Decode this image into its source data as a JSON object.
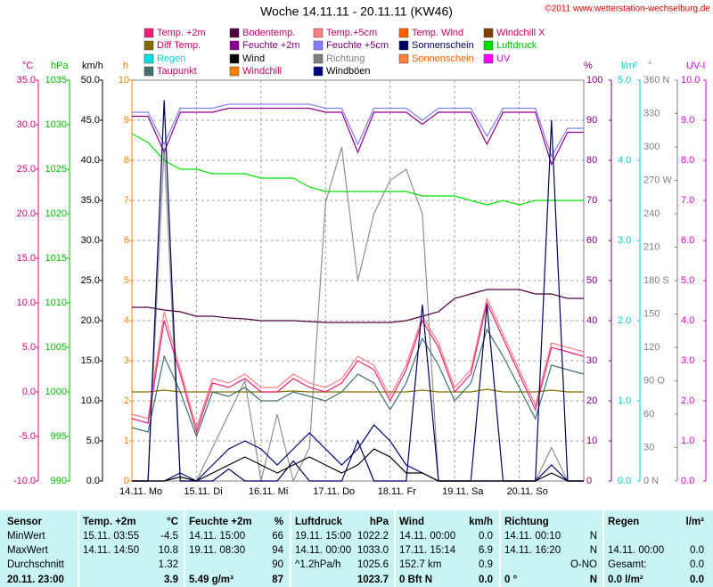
{
  "chart_data": {
    "type": "line",
    "title": "Woche 14.11.11 - 20.11.11 (KW46)",
    "copyright": "©2011 www.wetterstation-wechselburg.de",
    "legend": [
      [
        {
          "name": "Temp. +2m",
          "color": "#f0207a",
          "text": "#d00060"
        },
        {
          "name": "Diff Temp.",
          "color": "#807000",
          "text": "#d00060"
        },
        {
          "name": "Regen",
          "color": "#00e0e0",
          "text": "#00d0d0"
        },
        {
          "name": "Taupunkt",
          "color": "#407070",
          "text": "#d00060"
        }
      ],
      [
        {
          "name": "Bodentemp.",
          "color": "#500040",
          "text": "#d00060"
        },
        {
          "name": "Feuchte +2m",
          "color": "#900090",
          "text": "#800080"
        },
        {
          "name": "Wind",
          "color": "#000000",
          "text": "#000000"
        },
        {
          "name": "Windchill",
          "color": "#ff8000",
          "text": "#d00060"
        }
      ],
      [
        {
          "name": "Temp.+5cm",
          "color": "#ff8080",
          "text": "#d00060"
        },
        {
          "name": "Feuchte +5cm",
          "color": "#8080ff",
          "text": "#800080"
        },
        {
          "name": "Richtung",
          "color": "#808080",
          "text": "#808080"
        },
        {
          "name": "Windböen",
          "color": "#000080",
          "text": "#000000"
        }
      ],
      [
        {
          "name": "Temp. Wind",
          "color": "#ff6000",
          "text": "#d00060"
        },
        {
          "name": "Sonnenschein",
          "color": "#000060",
          "text": "#000060"
        },
        {
          "name": "Sonnenschein",
          "color": "#ff8040",
          "text": "#ff6000"
        }
      ],
      [
        {
          "name": "Windchill X",
          "color": "#804000",
          "text": "#d00060"
        },
        {
          "name": "Luftdruck",
          "color": "#00e000",
          "text": "#00c000"
        },
        {
          "name": "UV",
          "color": "#ff00ff",
          "text": "#e000e0"
        }
      ]
    ],
    "axes": [
      {
        "unit": "°C",
        "color": "#e0007a",
        "lim": [
          -10,
          35
        ],
        "ticks": [
          {
            "value": 35,
            "label": "35.0"
          },
          {
            "value": 30,
            "label": "30.0"
          },
          {
            "value": 25,
            "label": "25.0"
          },
          {
            "value": 20,
            "label": "20.0"
          },
          {
            "value": 15,
            "label": "15.0"
          },
          {
            "value": 10,
            "label": "10.0"
          },
          {
            "value": 5,
            "label": "5.0"
          },
          {
            "value": 0,
            "label": "0.0"
          },
          {
            "value": -5,
            "label": "-5.0"
          },
          {
            "value": -10,
            "label": "-10.0"
          }
        ]
      },
      {
        "unit": "hPa",
        "color": "#00c000",
        "lim": [
          990,
          1035
        ],
        "ticks": [
          1035,
          1030,
          1025,
          1020,
          1015,
          1010,
          1005,
          1000,
          995,
          990
        ]
      },
      {
        "unit": "km/h",
        "color": "#000000",
        "lim": [
          0,
          50
        ],
        "ticks": [
          {
            "value": 50,
            "label": "50.0"
          },
          {
            "value": 45,
            "label": "45.0"
          },
          {
            "value": 40,
            "label": "40.0"
          },
          {
            "value": 35,
            "label": "35.0"
          },
          {
            "value": 30,
            "label": "30.0"
          },
          {
            "value": 25,
            "label": "25.0"
          },
          {
            "value": 20,
            "label": "20.0"
          },
          {
            "value": 15,
            "label": "15.0"
          },
          {
            "value": 10,
            "label": "10.0"
          },
          {
            "value": 5,
            "label": "5.0"
          },
          {
            "value": 0,
            "label": "0.0"
          }
        ]
      },
      {
        "unit": "h",
        "color": "#ff8000",
        "lim": [
          0,
          10
        ],
        "ticks": [
          10,
          9,
          8,
          7,
          6,
          5,
          4,
          3,
          2,
          1,
          0
        ]
      },
      {
        "unit": "%",
        "color": "#800080",
        "lim": [
          0,
          100
        ],
        "ticks": [
          100,
          90,
          80,
          70,
          60,
          50,
          40,
          30,
          20,
          10,
          0
        ]
      },
      {
        "unit": "l/m²",
        "color": "#00d0d0",
        "lim": [
          0,
          5
        ],
        "ticks": [
          {
            "value": 5,
            "label": "5.0"
          },
          {
            "value": 4,
            "label": "4.0"
          },
          {
            "value": 3,
            "label": "3.0"
          },
          {
            "value": 2,
            "label": "2.0"
          },
          {
            "value": 1,
            "label": "1.0"
          },
          {
            "value": 0,
            "label": "0.0"
          }
        ]
      },
      {
        "unit": "°",
        "color": "#808080",
        "lim": [
          0,
          360
        ],
        "ticks": [
          {
            "value": 360,
            "label": "360 N"
          },
          330,
          300,
          {
            "value": 270,
            "label": "270 W"
          },
          240,
          210,
          {
            "value": 180,
            "label": "180 S"
          },
          150,
          120,
          {
            "value": 90,
            "label": "90 O"
          },
          60,
          30,
          {
            "value": 0,
            "label": "0 N"
          }
        ]
      },
      {
        "unit": "UV-I",
        "color": "#e000e0",
        "lim": [
          0,
          10
        ],
        "ticks": [
          {
            "value": 10,
            "label": "10.0"
          },
          {
            "value": 9,
            "label": "9.0"
          },
          {
            "value": 8,
            "label": "8.0"
          },
          {
            "value": 7,
            "label": "7.0"
          },
          {
            "value": 6,
            "label": "6.0"
          },
          {
            "value": 5,
            "label": "5.0"
          },
          {
            "value": 4,
            "label": "4.0"
          },
          {
            "value": 3,
            "label": "3.0"
          },
          {
            "value": 2,
            "label": "2.0"
          },
          {
            "value": 1,
            "label": "1.0"
          },
          {
            "value": 0,
            "label": "0.0"
          }
        ]
      }
    ],
    "grid": true,
    "days": [
      "14.11. Mo",
      "15.11. Di",
      "16.11. Mi",
      "17.11. Do",
      "18.11. Fr",
      "19.11. Sa",
      "20.11. So"
    ],
    "series": [
      {
        "name": "Richtung",
        "color": "#909090",
        "axis": 6,
        "values": [
          0,
          0,
          300,
          0,
          0,
          30,
          60,
          90,
          0,
          60,
          0,
          30,
          250,
          300,
          180,
          240,
          270,
          280,
          240,
          0,
          0,
          0,
          0,
          0,
          0,
          0,
          30,
          0,
          0
        ]
      },
      {
        "name": "Luftdruck",
        "color": "#00e000",
        "axis": 1,
        "values": [
          1029,
          1028,
          1026,
          1025,
          1025,
          1024.5,
          1024.5,
          1024.5,
          1024,
          1024,
          1024,
          1023,
          1022.5,
          1022.5,
          1022.5,
          1022.5,
          1022.5,
          1022.5,
          1022,
          1022,
          1022,
          1021.5,
          1021,
          1021.5,
          1021,
          1021.5,
          1021.5,
          1021.5,
          1021.5
        ]
      },
      {
        "name": "Feuchte +5cm",
        "color": "#8080ff",
        "axis": 4,
        "values": [
          92,
          92,
          84,
          93,
          93,
          93,
          94,
          94,
          94,
          94,
          94,
          94,
          93,
          93,
          84,
          93,
          93,
          93,
          90,
          93,
          93,
          93,
          86,
          93,
          93,
          93,
          81,
          88,
          88
        ]
      },
      {
        "name": "Feuchte +2m",
        "color": "#900090",
        "axis": 4,
        "values": [
          91,
          91,
          82,
          92,
          92,
          92,
          93,
          93,
          93,
          93,
          93,
          93,
          92,
          92,
          82,
          92,
          92,
          92,
          89,
          92,
          92,
          92,
          84,
          92,
          92,
          92,
          79,
          87,
          87
        ]
      },
      {
        "name": "Bodentemp.",
        "color": "#500040",
        "axis": 0,
        "values": [
          9.5,
          9.5,
          9.2,
          9,
          8.5,
          8.5,
          8.3,
          8.2,
          8,
          8,
          8,
          7.9,
          7.8,
          7.8,
          7.8,
          7.8,
          7.8,
          8,
          8.5,
          9,
          10.5,
          11,
          11.5,
          11.5,
          11.5,
          11,
          11,
          10.5,
          10.5
        ]
      },
      {
        "name": "Diff Temp.",
        "color": "#807000",
        "axis": 0,
        "values": [
          0,
          0,
          0.2,
          0,
          0,
          0,
          0,
          0,
          0,
          0,
          0.1,
          0,
          0,
          0,
          0,
          0,
          0,
          0,
          0.2,
          0,
          0,
          0,
          0.3,
          0,
          0,
          0,
          0.2,
          0,
          0
        ]
      },
      {
        "name": "Taupunkt",
        "color": "#407070",
        "axis": 0,
        "values": [
          -4,
          -4.5,
          4,
          0,
          -5,
          0,
          -0.5,
          0.5,
          -1,
          -1,
          0,
          -0.5,
          -1,
          0,
          2,
          1,
          -2,
          1,
          6,
          3,
          -1,
          1,
          7,
          4,
          0.5,
          -3,
          3,
          2.5,
          2
        ]
      },
      {
        "name": "Temp.+5cm",
        "color": "#ff8080",
        "axis": 0,
        "values": [
          -2.5,
          -3,
          9,
          2.5,
          -4,
          1.5,
          1,
          2,
          0.5,
          0.5,
          2,
          1,
          0.5,
          1.5,
          4,
          3,
          -0.5,
          3,
          8.5,
          5.5,
          0.5,
          2.5,
          10.5,
          6.5,
          2.5,
          -1.5,
          5.5,
          5,
          4.5
        ]
      },
      {
        "name": "Temp. +2m",
        "color": "#f0207a",
        "axis": 0,
        "values": [
          -3,
          -3.5,
          8,
          2,
          -4.5,
          1,
          0.5,
          1.5,
          0,
          0,
          1.5,
          0.5,
          0,
          1,
          3.5,
          2.5,
          -1,
          2.5,
          8,
          5,
          0,
          2,
          10,
          6,
          2,
          -2,
          5,
          4.5,
          4
        ]
      },
      {
        "name": "Sonnenschein",
        "color": "#000060",
        "axis": 3,
        "values": [
          0,
          0,
          9.5,
          0,
          0,
          0,
          0.3,
          0,
          0,
          0,
          0.5,
          0,
          0,
          0,
          1,
          0,
          0,
          0,
          4.4,
          0,
          0,
          0,
          4.4,
          0,
          0,
          0,
          9,
          0,
          0
        ]
      },
      {
        "name": "Windböen",
        "color": "#000080",
        "axis": 2,
        "values": [
          0,
          0,
          0,
          1,
          0,
          2,
          4,
          5,
          4,
          2,
          4,
          6,
          4,
          2,
          4,
          7,
          5,
          2,
          1,
          0,
          0,
          0,
          0,
          0,
          0,
          0,
          2,
          0,
          0
        ]
      },
      {
        "name": "Wind",
        "color": "#000000",
        "axis": 2,
        "values": [
          0,
          0,
          0,
          0.5,
          0,
          1,
          2,
          3,
          2,
          1,
          2,
          3,
          2,
          1,
          2,
          4,
          3,
          1,
          1,
          0,
          0,
          0,
          0,
          0,
          0,
          0,
          1,
          0,
          0
        ]
      }
    ]
  },
  "table": {
    "header": [
      "Sensor",
      "Temp. +2m",
      "°C",
      "Feuchte +2m",
      "%",
      "Luftdruck",
      "hPa",
      "Wind",
      "km/h",
      "Richtung",
      null,
      "Regen",
      "l/m²"
    ],
    "rows": [
      [
        "MinWert",
        "15.11. 03:55",
        "-4.5",
        "14.11. 15:00",
        "66",
        "19.11. 15:00",
        "1022.2",
        "14.11. 00:00",
        "0.0",
        "14.11. 00:10",
        "N",
        null,
        null
      ],
      [
        "MaxWert",
        "14.11. 14:50",
        "10.8",
        "19.11. 08:30",
        "94",
        "14.11. 00:00",
        "1033.0",
        "17.11. 15:14",
        "6.9",
        "14.11. 16:20",
        "N",
        "14.11. 00:00",
        "0.0"
      ],
      [
        "Durchschnitt",
        null,
        "1.32",
        null,
        "90",
        "^1.2hPa/h",
        "1025.6",
        "152.7 km",
        "0.9",
        null,
        "O-NO",
        "Gesamt:",
        "0.0"
      ],
      [
        "20.11. 23:00",
        null,
        "3.9",
        "5.49 g/m³",
        "87",
        null,
        "1023.7",
        "0 Bft N",
        "0.0",
        "0 °",
        "N",
        "0.0 l/m²",
        "0.0"
      ]
    ]
  }
}
